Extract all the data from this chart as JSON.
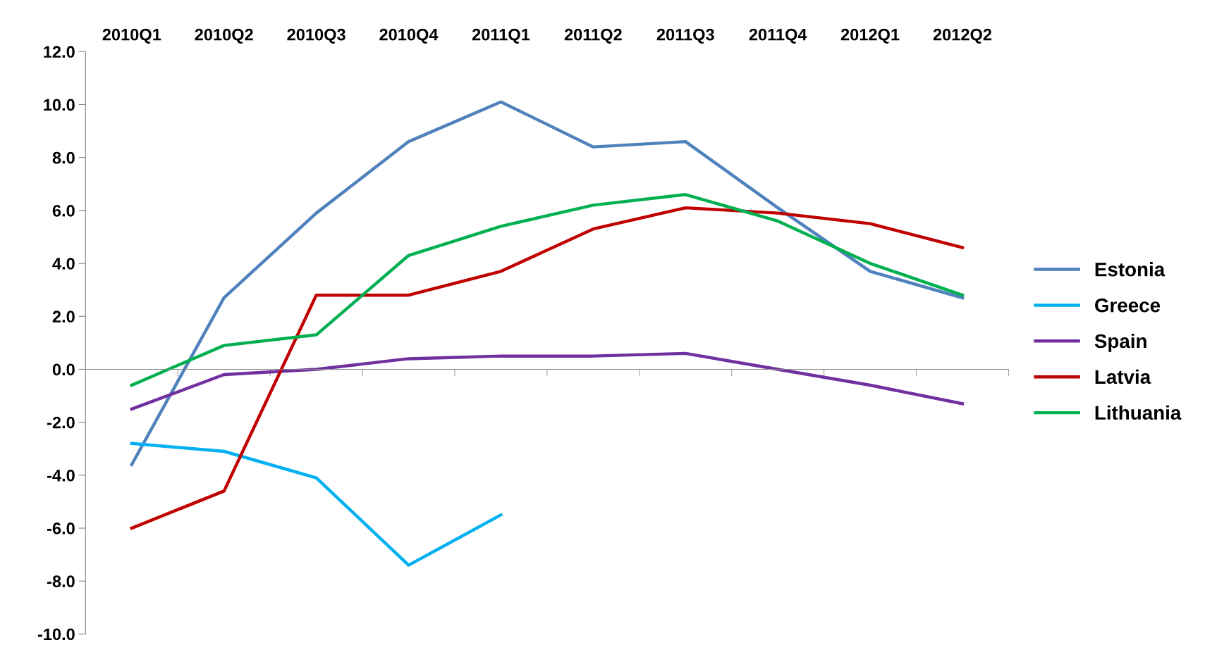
{
  "chart_data": {
    "type": "line",
    "categories": [
      "2010Q1",
      "2010Q2",
      "2010Q3",
      "2010Q4",
      "2011Q1",
      "2011Q2",
      "2011Q3",
      "2011Q4",
      "2012Q1",
      "2012Q2"
    ],
    "series": [
      {
        "name": "Estonia",
        "color": "#4f81bd",
        "values": [
          -3.6,
          2.7,
          5.9,
          8.6,
          10.1,
          8.4,
          8.6,
          6.1,
          3.7,
          2.7
        ]
      },
      {
        "name": "Greece",
        "color": "#00b0f0",
        "values": [
          -2.8,
          -3.1,
          -4.1,
          -7.4,
          -5.5,
          null,
          null,
          null,
          null,
          null
        ]
      },
      {
        "name": "Spain",
        "color": "#7030a0",
        "values": [
          -1.5,
          -0.2,
          0.0,
          0.4,
          0.5,
          0.5,
          0.6,
          0.0,
          -0.6,
          -1.3
        ]
      },
      {
        "name": "Latvia",
        "color": "#c00000",
        "values": [
          -6.0,
          -4.6,
          2.8,
          2.8,
          3.7,
          5.3,
          6.1,
          5.9,
          5.5,
          4.6
        ]
      },
      {
        "name": "Lithuania",
        "color": "#00b050",
        "values": [
          -0.6,
          0.9,
          1.3,
          4.3,
          5.4,
          6.2,
          6.6,
          5.6,
          4.0,
          2.8
        ]
      }
    ],
    "ylim": [
      -10,
      12
    ],
    "yticks": [
      {
        "value": -10,
        "label": "-10.0"
      },
      {
        "value": -8,
        "label": "-8.0"
      },
      {
        "value": -6,
        "label": "-6.0"
      },
      {
        "value": -4,
        "label": "-4.0"
      },
      {
        "value": -2,
        "label": "-2.0"
      },
      {
        "value": 0,
        "label": "0.0"
      },
      {
        "value": 2,
        "label": "2.0"
      },
      {
        "value": 4,
        "label": "4.0"
      },
      {
        "value": 6,
        "label": "6.0"
      },
      {
        "value": 8,
        "label": "8.0"
      },
      {
        "value": 10,
        "label": "10.0"
      },
      {
        "value": 12,
        "label": "12.0"
      }
    ],
    "legend": "right",
    "marker": "none",
    "line_style": "solid"
  }
}
